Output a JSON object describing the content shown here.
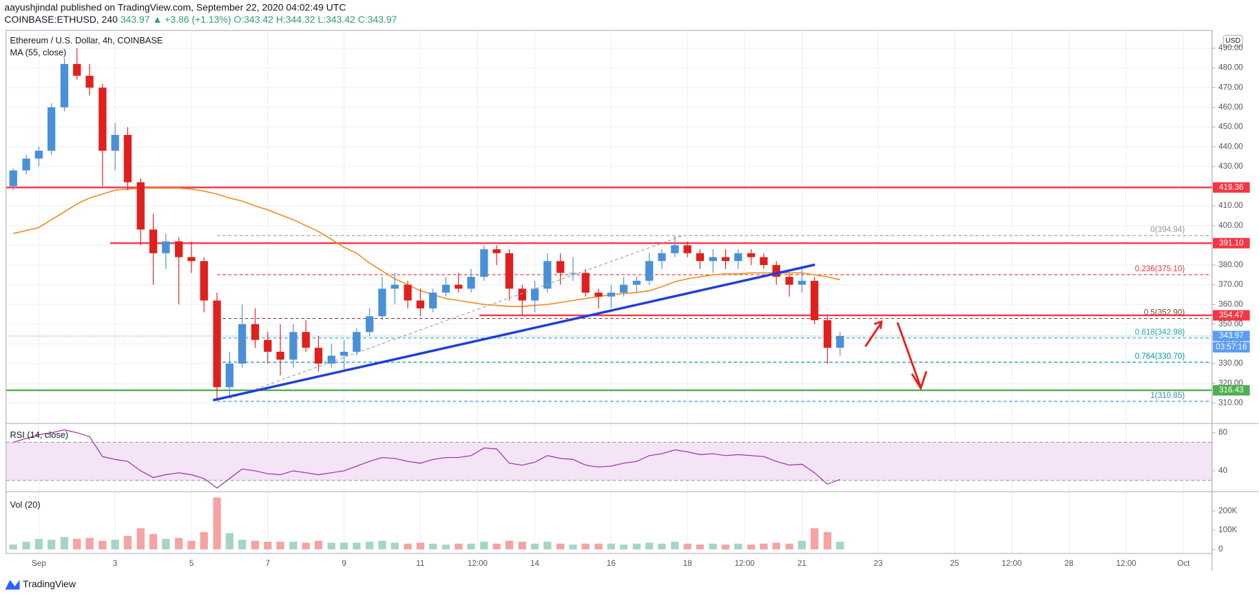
{
  "header": {
    "publisher": "aayushjindal published on TradingView.com, September 22, 2020 04:02:49 UTC",
    "symbol": "COINBASE:ETHUSD, 240",
    "last": "343.97",
    "change": "▲ +3.86 (+1.13%)",
    "open": "O:343.42",
    "high": "H:344.32",
    "low": "L:343.42",
    "close": "C:343.97"
  },
  "chart_data": {
    "type": "candlestick",
    "title": "Ethereum / U.S. Dollar, 4h, COINBASE",
    "currency": "USD",
    "footer": "TradingView",
    "up_color": "#4a90d9",
    "down_color": "#e0201e",
    "grid": true,
    "xlim": [
      0.14,
      31.75
    ],
    "xticks": [
      {
        "value": 1,
        "label": "Sep"
      },
      3,
      5,
      7,
      9,
      11,
      {
        "value": 12.5,
        "label": "12:00"
      },
      14,
      16,
      18,
      {
        "value": 19.5,
        "label": "12:00"
      },
      21,
      23,
      25,
      {
        "value": 26.5,
        "label": "12:00"
      },
      28,
      {
        "value": 29.5,
        "label": "12:00"
      },
      {
        "value": 31,
        "label": "Oct"
      }
    ],
    "ylim": [
      300,
      499
    ],
    "yticks": [
      {
        "value": 310,
        "label": "310.00"
      },
      {
        "value": 320,
        "label": "320.00"
      },
      {
        "value": 330,
        "label": "330.00"
      },
      {
        "value": 340,
        "label": "340.00"
      },
      {
        "value": 350,
        "label": "350.00"
      },
      {
        "value": 360,
        "label": "360.00"
      },
      {
        "value": 370,
        "label": "370.00"
      },
      {
        "value": 380,
        "label": "380.00"
      },
      {
        "value": 390,
        "label": "390.00"
      },
      {
        "value": 400,
        "label": "400.00"
      },
      {
        "value": 410,
        "label": "410.00"
      },
      {
        "value": 420,
        "label": "420.00"
      },
      {
        "value": 430,
        "label": "430.00"
      },
      {
        "value": 440,
        "label": "440.00"
      },
      {
        "value": 450,
        "label": "450.00"
      },
      {
        "value": 460,
        "label": "460.00"
      },
      {
        "value": 470,
        "label": "470.00"
      },
      {
        "value": 480,
        "label": "480.00"
      },
      {
        "value": 490,
        "label": "490.00"
      }
    ],
    "candles": {
      "x": [
        0.33,
        0.67,
        1,
        1.33,
        1.67,
        2,
        2.33,
        2.67,
        3,
        3.33,
        3.67,
        4,
        4.33,
        4.67,
        5,
        5.33,
        5.67,
        6,
        6.33,
        6.67,
        7,
        7.33,
        7.67,
        8,
        8.33,
        8.67,
        9,
        9.33,
        9.67,
        10,
        10.33,
        10.67,
        11,
        11.33,
        11.67,
        12,
        12.33,
        12.67,
        13,
        13.33,
        13.67,
        14,
        14.33,
        14.67,
        15,
        15.33,
        15.67,
        16,
        16.33,
        16.67,
        17,
        17.33,
        17.67,
        18,
        18.33,
        18.67,
        19,
        19.33,
        19.67,
        20,
        20.33,
        20.67,
        21,
        21.33,
        21.67,
        22
      ],
      "open": [
        420,
        428,
        434,
        438,
        460,
        482,
        476,
        470,
        438,
        446,
        422,
        398,
        386,
        392,
        384,
        382,
        362,
        318,
        330,
        350,
        342,
        336,
        332,
        346,
        338,
        330,
        334,
        336,
        346,
        354,
        368,
        370,
        362,
        358,
        366,
        370,
        368,
        374,
        388,
        386,
        368,
        362,
        368,
        382,
        376,
        376,
        366,
        364,
        366,
        370,
        372,
        382,
        386,
        390,
        386,
        382,
        384,
        382,
        386,
        384,
        380,
        374,
        370,
        372,
        352,
        338
      ],
      "high": [
        429,
        436,
        440,
        462,
        485,
        490,
        482,
        472,
        452,
        450,
        424,
        406,
        396,
        394,
        392,
        384,
        366,
        336,
        360,
        358,
        346,
        350,
        350,
        352,
        344,
        340,
        342,
        348,
        358,
        374,
        376,
        372,
        368,
        368,
        374,
        376,
        378,
        390,
        390,
        388,
        370,
        372,
        386,
        386,
        384,
        378,
        368,
        370,
        374,
        374,
        386,
        388,
        395,
        392,
        388,
        388,
        388,
        388,
        388,
        386,
        382,
        376,
        378,
        374,
        354,
        346
      ],
      "low": [
        418,
        426,
        430,
        436,
        458,
        474,
        466,
        420,
        428,
        418,
        390,
        370,
        378,
        360,
        376,
        356,
        312,
        314,
        328,
        338,
        330,
        324,
        328,
        336,
        326,
        328,
        326,
        334,
        344,
        352,
        360,
        358,
        354,
        356,
        364,
        366,
        366,
        372,
        380,
        362,
        354,
        356,
        366,
        370,
        372,
        364,
        358,
        358,
        364,
        366,
        370,
        378,
        384,
        384,
        378,
        376,
        378,
        378,
        380,
        378,
        370,
        364,
        366,
        350,
        330,
        334
      ],
      "close": [
        428,
        434,
        438,
        460,
        482,
        476,
        470,
        438,
        446,
        422,
        398,
        386,
        392,
        384,
        382,
        362,
        318,
        330,
        350,
        342,
        336,
        332,
        346,
        338,
        330,
        334,
        336,
        346,
        354,
        368,
        370,
        362,
        358,
        366,
        370,
        368,
        374,
        388,
        386,
        368,
        362,
        368,
        382,
        376,
        376,
        366,
        364,
        366,
        370,
        372,
        382,
        386,
        390,
        386,
        382,
        384,
        382,
        386,
        384,
        380,
        374,
        370,
        372,
        352,
        338,
        344
      ]
    },
    "ma": {
      "name": "MA (55, close)",
      "color": "#f0932b",
      "values": [
        396,
        397.5,
        399,
        403,
        407,
        411,
        414,
        416,
        418,
        418.5,
        419,
        419,
        419,
        419,
        418.5,
        417.5,
        416,
        414,
        412.5,
        410,
        408,
        405.5,
        403,
        400,
        397,
        393,
        389,
        386,
        381,
        377,
        373,
        370,
        367,
        365,
        363,
        362,
        361,
        360,
        359.5,
        359,
        359,
        359.5,
        360,
        361,
        362,
        363,
        364,
        365,
        365.5,
        366,
        367,
        369,
        371.5,
        373,
        374,
        375,
        375.5,
        375.5,
        376,
        376,
        376,
        376,
        376,
        375,
        374,
        372.5
      ]
    },
    "levels": [
      {
        "value": 419.36,
        "label": "419.36",
        "color": "#f23645",
        "style": "solid"
      },
      {
        "value": 391.1,
        "label": "391.10",
        "color": "#f23645",
        "style": "solid",
        "from": 2.87
      },
      {
        "value": 354.47,
        "label": "354.47",
        "color": "#f23645",
        "style": "solid",
        "from": 12.55
      },
      {
        "value": 343.97,
        "label": "343.97",
        "color": "#5b9cf6",
        "style": "dotted"
      },
      {
        "value": 316.43,
        "label": "316.43",
        "color": "#4caf50",
        "style": "solid"
      }
    ],
    "countdown": "03:57:16",
    "fib": [
      {
        "value": 394.94,
        "label": "0(394.94)",
        "color": "#9598a1"
      },
      {
        "value": 375.1,
        "label": "0.236(375.10)",
        "color": "#f23645"
      },
      {
        "value": 352.9,
        "label": "0.5(352.90)",
        "color": "#8b3a3a"
      },
      {
        "value": 342.98,
        "label": "0.618(342.98)",
        "color": "#26a69a"
      },
      {
        "value": 330.7,
        "label": "0.764(330.70)",
        "color": "#0097a7"
      },
      {
        "value": 310.85,
        "label": "1(310.85)",
        "color": "#3d85c6"
      }
    ],
    "rsi": {
      "name": "RSI (14, close)",
      "color": "#9c27b0",
      "ylim": [
        19,
        88
      ],
      "yticks": [
        80,
        40
      ],
      "band": [
        30,
        70
      ],
      "values": [
        70,
        74,
        78,
        80,
        83,
        80,
        76,
        55,
        52,
        50,
        40,
        33,
        36,
        38,
        36,
        32,
        22,
        32,
        42,
        40,
        37,
        36,
        40,
        38,
        36,
        38,
        40,
        45,
        50,
        54,
        53,
        50,
        48,
        52,
        54,
        54,
        56,
        64,
        63,
        48,
        46,
        49,
        56,
        53,
        52,
        46,
        44,
        45,
        48,
        50,
        56,
        58,
        62,
        60,
        57,
        58,
        56,
        57,
        56,
        55,
        50,
        46,
        47,
        38,
        26,
        31
      ]
    },
    "volume": {
      "name": "Vol (20)",
      "ylim": [
        -21,
        292
      ],
      "yticks": [
        {
          "value": 200,
          "label": "200K"
        },
        {
          "value": 100,
          "label": "100K"
        },
        0
      ],
      "values": [
        25,
        40,
        55,
        50,
        65,
        55,
        60,
        45,
        50,
        70,
        110,
        80,
        55,
        60,
        45,
        90,
        270,
        85,
        50,
        45,
        40,
        40,
        40,
        35,
        45,
        35,
        35,
        35,
        40,
        45,
        35,
        30,
        35,
        30,
        25,
        30,
        30,
        40,
        30,
        45,
        40,
        30,
        40,
        30,
        25,
        30,
        30,
        30,
        25,
        30,
        35,
        30,
        40,
        30,
        25,
        30,
        25,
        30,
        25,
        30,
        35,
        30,
        45,
        110,
        90,
        40
      ]
    }
  }
}
